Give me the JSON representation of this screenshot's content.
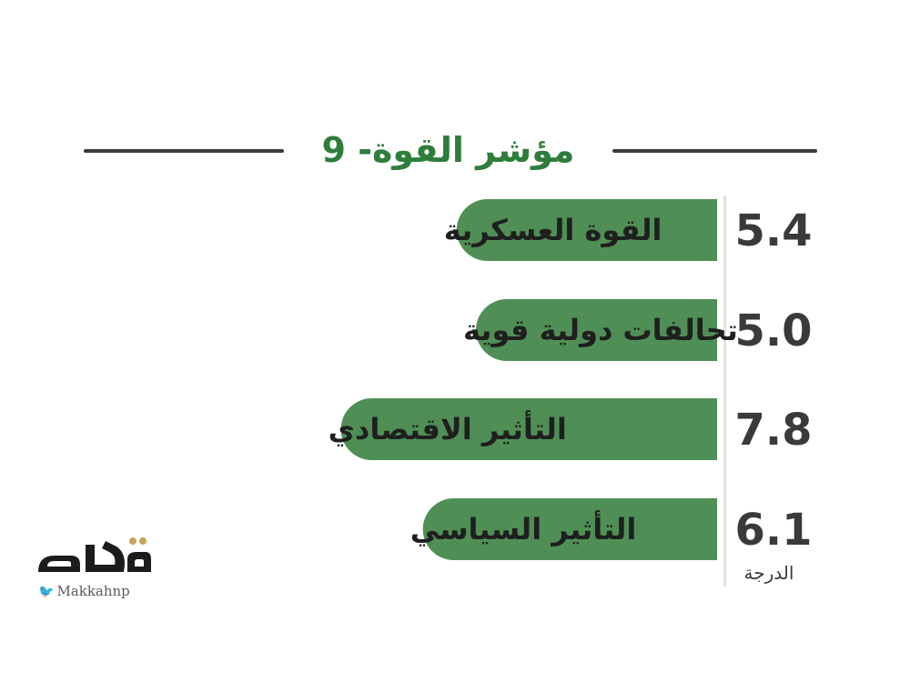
{
  "title": "مؤشر القوة- 9",
  "chart_data": {
    "type": "bar",
    "orientation": "horizontal",
    "categories": [
      "القوة العسكرية",
      "تحالفات دولية قوية",
      "التأثير الاقتصادي",
      "التأثير السياسي"
    ],
    "values": [
      5.4,
      5.0,
      7.8,
      6.1
    ],
    "value_labels": [
      "5.4",
      "5.0",
      "7.8",
      "6.1"
    ],
    "unit_label": "الدرجة",
    "xlim": [
      0,
      10
    ],
    "bar_color": "#4f8f55"
  },
  "logo": {
    "name": "مكة",
    "handle": "Makkahnp",
    "icon": "twitter-bird-icon"
  }
}
